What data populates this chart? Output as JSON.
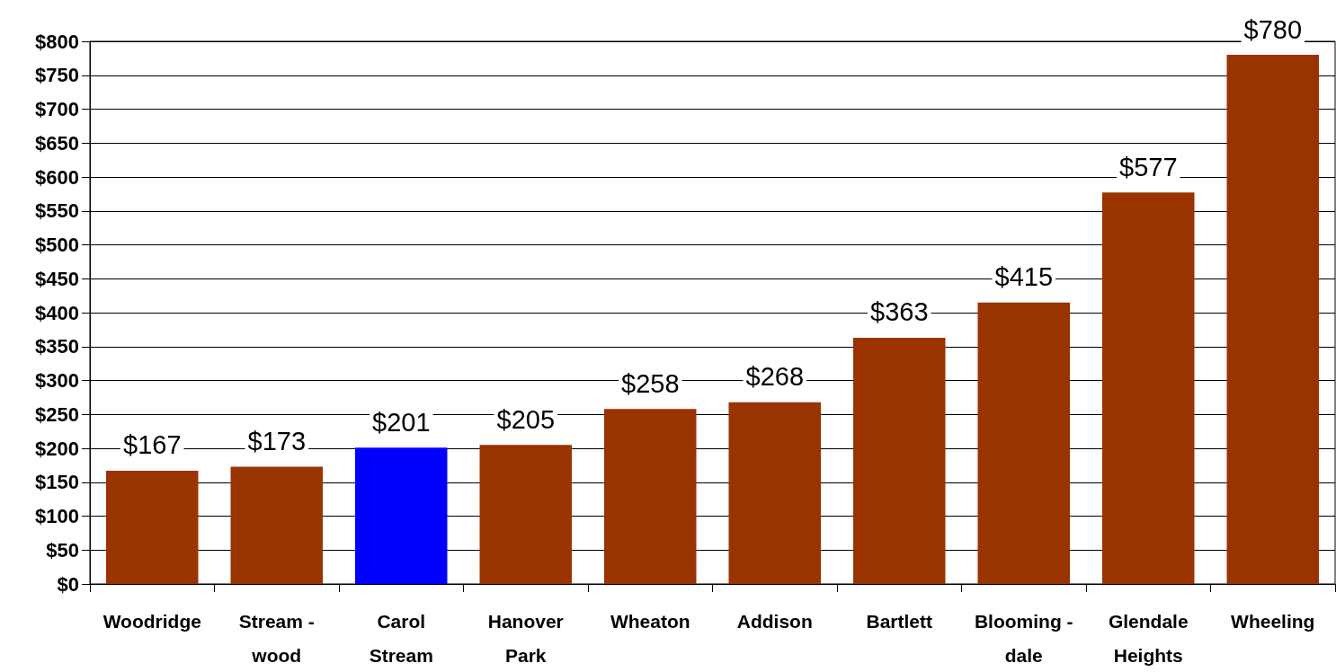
{
  "chart_data": {
    "type": "bar",
    "categories": [
      "Woodridge",
      "Stream -\nwood",
      "Carol\nStream",
      "Hanover\nPark",
      "Wheaton",
      "Addison",
      "Bartlett",
      "Blooming -\ndale",
      "Glendale\nHeights",
      "Wheeling"
    ],
    "values": [
      167,
      173,
      201,
      205,
      258,
      268,
      363,
      415,
      577,
      780
    ],
    "colors": [
      "#993300",
      "#993300",
      "#0000ff",
      "#993300",
      "#993300",
      "#993300",
      "#993300",
      "#993300",
      "#993300",
      "#993300"
    ],
    "value_labels": [
      "$167",
      "$173",
      "$201",
      "$205",
      "$258",
      "$268",
      "$363",
      "$415",
      "$577",
      "$780"
    ],
    "ylim": [
      0,
      800
    ],
    "yticks": [
      {
        "value": 0,
        "label": "$0"
      },
      {
        "value": 50,
        "label": "$50"
      },
      {
        "value": 100,
        "label": "$100"
      },
      {
        "value": 150,
        "label": "$150"
      },
      {
        "value": 200,
        "label": "$200"
      },
      {
        "value": 250,
        "label": "$250"
      },
      {
        "value": 300,
        "label": "$300"
      },
      {
        "value": 350,
        "label": "$350"
      },
      {
        "value": 400,
        "label": "$400"
      },
      {
        "value": 450,
        "label": "$450"
      },
      {
        "value": 500,
        "label": "$500"
      },
      {
        "value": 550,
        "label": "$550"
      },
      {
        "value": 600,
        "label": "$600"
      },
      {
        "value": 650,
        "label": "$650"
      },
      {
        "value": 700,
        "label": "$700"
      },
      {
        "value": 750,
        "label": "$750"
      },
      {
        "value": 800,
        "label": "$800"
      }
    ],
    "grid": "y"
  }
}
